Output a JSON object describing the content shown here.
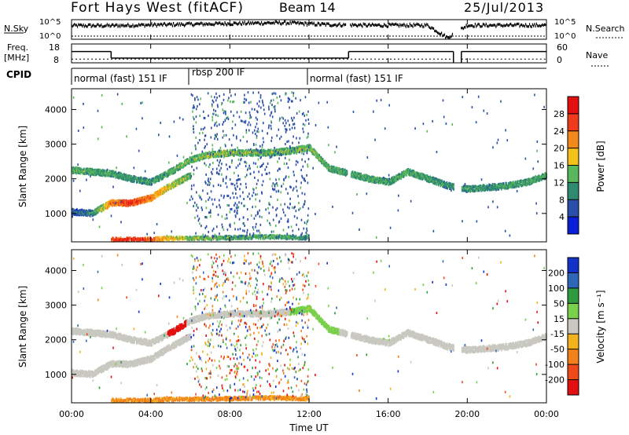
{
  "header": {
    "title": "Fort Hays West (fitACF)",
    "beam": "Beam 14",
    "date": "25/Jul/2013"
  },
  "noise_panel": {
    "left_label": "N.Sky",
    "right_label": "N.Search",
    "left_ticks": [
      "10^5",
      "10^0"
    ],
    "right_ticks": [
      "10^5",
      "10^0"
    ]
  },
  "freq_panel": {
    "left_label_line1": "Freq.",
    "left_label_line2": "[MHz]",
    "right_label": "Nave",
    "left_ticks": [
      "18",
      "8"
    ],
    "right_ticks": [
      "60",
      "0"
    ],
    "freq_segments": [
      {
        "start": 0,
        "end": 2,
        "value": 14
      },
      {
        "start": 2,
        "end": 14,
        "value": 10.5
      },
      {
        "start": 14,
        "end": 19.3,
        "value": 14
      },
      {
        "start": 19.7,
        "end": 24,
        "value": 14
      }
    ]
  },
  "cpid": {
    "label": "CPID",
    "segments": [
      {
        "start": 0,
        "end": 6,
        "name": "normal (fast) 151 IF"
      },
      {
        "start": 6,
        "end": 12,
        "name": "rbsp 200 IF"
      },
      {
        "start": 12,
        "end": 24,
        "name": "normal (fast) 151 IF"
      }
    ]
  },
  "power_panel": {
    "ylabel": "Slant Range [km]",
    "yticks": [
      "4000",
      "3000",
      "2000",
      "1000"
    ],
    "colorbar_label": "Power [dB]",
    "colorbar_ticks": [
      "28",
      "24",
      "20",
      "16",
      "12",
      "8",
      "4"
    ],
    "colors": [
      "#0a1ed8",
      "#2a4fa8",
      "#2f8a70",
      "#58b65b",
      "#f2c21b",
      "#f28a1b",
      "#ef3b1b",
      "#e21010"
    ]
  },
  "velocity_panel": {
    "ylabel": "Slant Range [km]",
    "yticks": [
      "4000",
      "3000",
      "2000",
      "1000"
    ],
    "colorbar_label": "Velocity [m s⁻¹]",
    "colorbar_ticks": [
      "200",
      "100",
      "50",
      "15",
      "-15",
      "-50",
      "-100",
      "-200"
    ],
    "colors": [
      "#1432c8",
      "#2f67b8",
      "#2f9a3f",
      "#79d04a",
      "#c8c8c0",
      "#f2b21b",
      "#f2801b",
      "#ef4a1b",
      "#e21010"
    ]
  },
  "xaxis": {
    "label": "Time UT",
    "ticks": [
      "00:00",
      "04:00",
      "08:00",
      "12:00",
      "16:00",
      "20:00",
      "00:00"
    ]
  },
  "chart_data": {
    "type": "heatmap",
    "title": "Fort Hays West (fitACF)",
    "xlabel": "Time UT",
    "ylabel": "Slant Range [km]",
    "xlim": [
      0,
      24
    ],
    "ylim": [
      180,
      4600
    ],
    "data_gaps_hours": [
      [
        13.9,
        14.1
      ],
      [
        19.3,
        19.7
      ]
    ],
    "power_scale_db": [
      0,
      32
    ],
    "velocity_scale_ms": [
      -250,
      250
    ],
    "series": [
      {
        "name": "upper-echo-band",
        "x": [
          0,
          1,
          2,
          3,
          4,
          5,
          6,
          7,
          8,
          9,
          10,
          11,
          12,
          13,
          14,
          15,
          16,
          17,
          18,
          19,
          20,
          21,
          22,
          23,
          24
        ],
        "y": [
          2250,
          2200,
          2150,
          2000,
          1900,
          2200,
          2550,
          2700,
          2750,
          2750,
          2750,
          2800,
          2900,
          2300,
          2150,
          2000,
          1900,
          2200,
          2000,
          1800,
          1700,
          1750,
          1800,
          1900,
          2100
        ],
        "power_db": [
          14,
          14,
          13,
          12,
          12,
          14,
          15,
          16,
          16,
          15,
          15,
          15,
          16,
          14,
          14,
          13,
          13,
          14,
          13,
          12,
          12,
          12,
          13,
          13,
          14
        ]
      },
      {
        "name": "lower-echo-band",
        "x": [
          0,
          1,
          2,
          3,
          4,
          5,
          6
        ],
        "y": [
          1050,
          1000,
          1300,
          1300,
          1450,
          1800,
          2100
        ],
        "power_db": [
          8,
          10,
          24,
          28,
          24,
          18,
          14
        ]
      },
      {
        "name": "ground-scatter-near-range",
        "x": [
          2,
          3,
          4,
          5,
          6,
          8,
          10,
          12
        ],
        "y": [
          250,
          250,
          250,
          280,
          280,
          300,
          320,
          300
        ],
        "power_db": [
          28,
          28,
          26,
          20,
          16,
          14,
          14,
          12
        ]
      }
    ],
    "noise_sky_log10": [
      3.5,
      3.5,
      3.5,
      3.6,
      3.7,
      3.8,
      3.9,
      4.0,
      4.1,
      4.2,
      4.3,
      4.3,
      4.0,
      3.8,
      3.7,
      3.6,
      3.6,
      3.6,
      3.6,
      0,
      3.6,
      3.6,
      3.6,
      3.6,
      3.6
    ],
    "nave": [
      12,
      12,
      12,
      12,
      12,
      12,
      12,
      12,
      12,
      12,
      12,
      12,
      12,
      12,
      12,
      12,
      12,
      12,
      12,
      0,
      12,
      12,
      12,
      12,
      12
    ]
  }
}
